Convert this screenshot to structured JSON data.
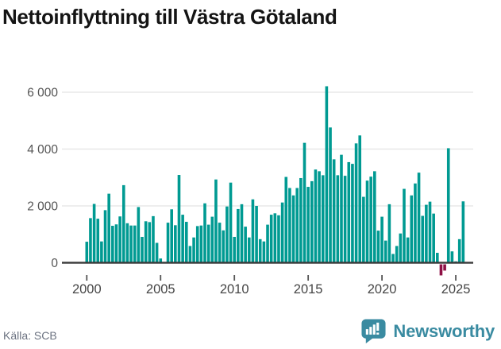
{
  "header": {
    "title": "Nettoinflyttning till Västra Götaland"
  },
  "footer": {
    "source": "Källa: SCB",
    "brand": "Newsworthy"
  },
  "icons": {
    "brand_logo": "newsworthy-speech-bubble-bar-chart-icon"
  },
  "colors": {
    "bar_positive": "#009a92",
    "bar_negative": "#8e1045",
    "axis_line": "#3a3a3a",
    "gridline": "#e8e8e8",
    "tick_text": "#454545",
    "y_text": "#555555",
    "source_text": "#6b7280",
    "brand": "#3a8ba1",
    "title_text": "#141414"
  },
  "chart_data": {
    "type": "bar",
    "title": "Nettoinflyttning till Västra Götaland",
    "source": "Källa: SCB",
    "interval": "quarter",
    "x_start": "2000-Q1",
    "x_end": "2025-Q3",
    "xlabel": "",
    "ylabel": "",
    "ylim": [
      -500,
      6500
    ],
    "grid": "horizontal",
    "legend": "none",
    "y_tick_labels": [
      "0",
      "2 000",
      "4 000",
      "6 000"
    ],
    "y_tick_values": [
      0,
      2000,
      4000,
      6000
    ],
    "x_tick_labels": [
      "2000",
      "2005",
      "2010",
      "2015",
      "2020",
      "2025"
    ],
    "x_tick_quarter_index": [
      0,
      20,
      40,
      60,
      80,
      100
    ],
    "values": [
      740,
      1570,
      2070,
      1550,
      750,
      1850,
      2430,
      1300,
      1350,
      1630,
      2730,
      1390,
      1310,
      1310,
      1960,
      910,
      1460,
      1430,
      1640,
      700,
      150,
      30,
      1410,
      1880,
      1320,
      3090,
      1690,
      1440,
      590,
      890,
      1290,
      1310,
      2090,
      1340,
      1620,
      2930,
      1410,
      1140,
      1980,
      2820,
      910,
      1890,
      2060,
      1270,
      890,
      2230,
      2000,
      830,
      750,
      1340,
      1690,
      1740,
      1670,
      2120,
      3020,
      2630,
      2370,
      2630,
      2980,
      4220,
      2670,
      2870,
      3280,
      3220,
      3080,
      6210,
      4760,
      3640,
      3080,
      3800,
      3060,
      3540,
      3480,
      4200,
      4480,
      2320,
      2890,
      3030,
      3220,
      1130,
      1620,
      780,
      2060,
      310,
      590,
      1030,
      2600,
      890,
      2370,
      2790,
      3170,
      1650,
      2040,
      2150,
      1730,
      350,
      -390,
      -220,
      4030,
      400,
      50,
      830,
      2160
    ]
  }
}
